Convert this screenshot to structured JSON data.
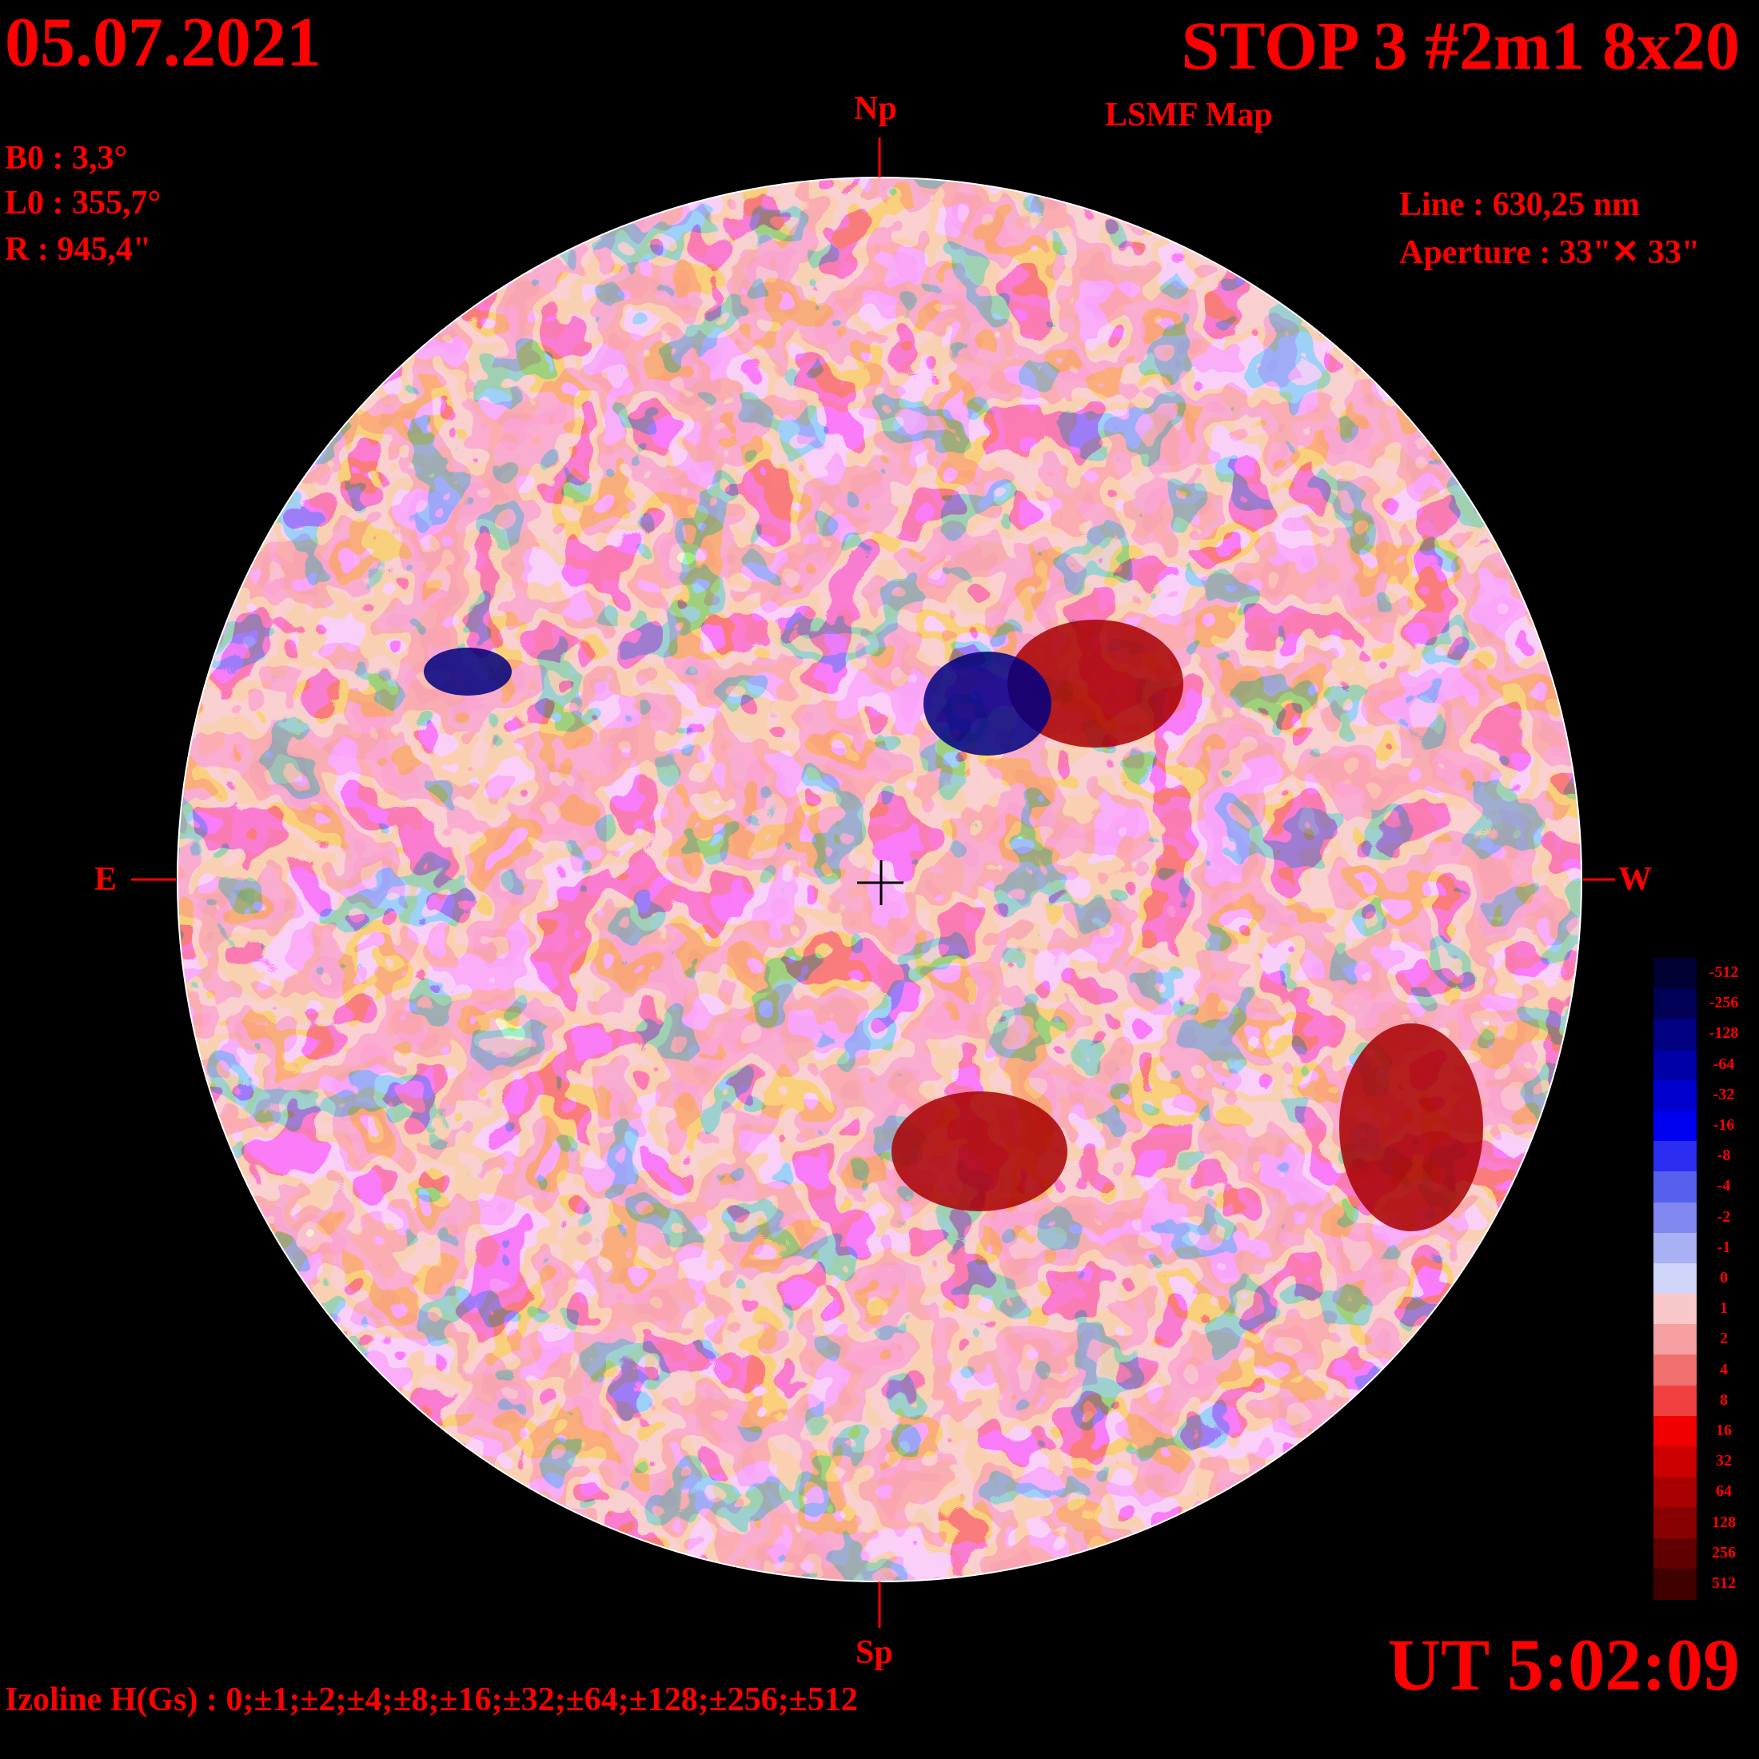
{
  "header": {
    "date": "05.07.2021",
    "title": "STOP 3 #2m1 8x20",
    "subtitle": "LSMF  Map"
  },
  "params": [
    {
      "label": "B0 : 3,3°"
    },
    {
      "label": "L0 : 355,7°"
    },
    {
      "label": "R  : 945,4\""
    }
  ],
  "instrument": [
    {
      "label": "Line :  630,25 nm"
    },
    {
      "label": "Aperture : 33\"✕ 33\""
    }
  ],
  "directions": {
    "north": "Np",
    "south": "Sp",
    "east": "E",
    "west": "W"
  },
  "time": "UT 5:02:09",
  "isolines": "Izoline H(Gs) : 0;±1;±2;±4;±8;±16;±32;±64;±128;±256;±512",
  "legend": {
    "levels": [
      {
        "label": "-512",
        "color": "#000033"
      },
      {
        "label": "-256",
        "color": "#000055"
      },
      {
        "label": "-128",
        "color": "#000080"
      },
      {
        "label": "-64",
        "color": "#0000a8"
      },
      {
        "label": "-32",
        "color": "#0000cc"
      },
      {
        "label": "-16",
        "color": "#0000f0"
      },
      {
        "label": "-8",
        "color": "#2a2ef0"
      },
      {
        "label": "-4",
        "color": "#5560ec"
      },
      {
        "label": "-2",
        "color": "#8088f0"
      },
      {
        "label": "-1",
        "color": "#aab0f4"
      },
      {
        "label": "0",
        "color": "#d0d4f8"
      },
      {
        "label": "1",
        "color": "#f8c8c8"
      },
      {
        "label": "2",
        "color": "#f4a0a0"
      },
      {
        "label": "4",
        "color": "#f07070"
      },
      {
        "label": "8",
        "color": "#f04040"
      },
      {
        "label": "16",
        "color": "#f00000"
      },
      {
        "label": "32",
        "color": "#cc0000"
      },
      {
        "label": "64",
        "color": "#a80000"
      },
      {
        "label": "128",
        "color": "#880000"
      },
      {
        "label": "256",
        "color": "#600000"
      },
      {
        "label": "512",
        "color": "#400000"
      }
    ]
  },
  "regions": [
    {
      "name": "active-region-west-north",
      "polarity": "positive",
      "color": "#880000"
    },
    {
      "name": "active-region-south-west",
      "polarity": "positive",
      "color": "#880000"
    },
    {
      "name": "active-region-north-center",
      "polarity": "negative",
      "color": "#000055"
    },
    {
      "name": "active-region-east",
      "polarity": "negative",
      "color": "#000055"
    }
  ]
}
